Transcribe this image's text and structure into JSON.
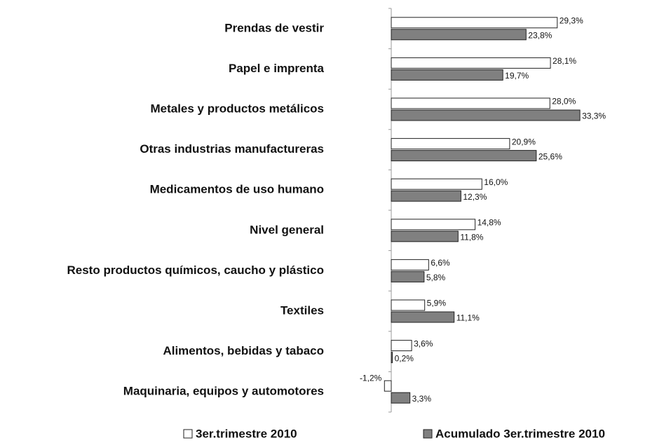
{
  "chart_data": {
    "type": "barh",
    "categories": [
      "Prendas de vestir",
      "Papel e imprenta",
      "Metales y productos metálicos",
      "Otras industrias manufactureras",
      "Medicamentos de uso humano",
      "Nivel general",
      "Resto productos químicos, caucho y plástico",
      "Textiles",
      "Alimentos, bebidas y tabaco",
      "Maquinaria, equipos y automotores"
    ],
    "series": [
      {
        "name": "3er.trimestre 2010",
        "color": "#ffffff",
        "values": [
          29.3,
          28.1,
          28.0,
          20.9,
          16.0,
          14.8,
          6.6,
          5.9,
          3.6,
          -1.2
        ],
        "value_labels": [
          "29,3%",
          "28,1%",
          "28,0%",
          "20,9%",
          "16,0%",
          "14,8%",
          "6,6%",
          "5,9%",
          "3,6%",
          "-1,2%"
        ]
      },
      {
        "name": "Acumulado 3er.trimestre 2010",
        "color": "#808080",
        "values": [
          23.8,
          19.7,
          33.3,
          25.6,
          12.3,
          11.8,
          5.8,
          11.1,
          0.2,
          3.3
        ],
        "value_labels": [
          "23,8%",
          "19,7%",
          "33,3%",
          "25,6%",
          "12,3%",
          "11,8%",
          "5,8%",
          "11,1%",
          "0,2%",
          "3,3%"
        ]
      }
    ],
    "legend": "bottom"
  }
}
